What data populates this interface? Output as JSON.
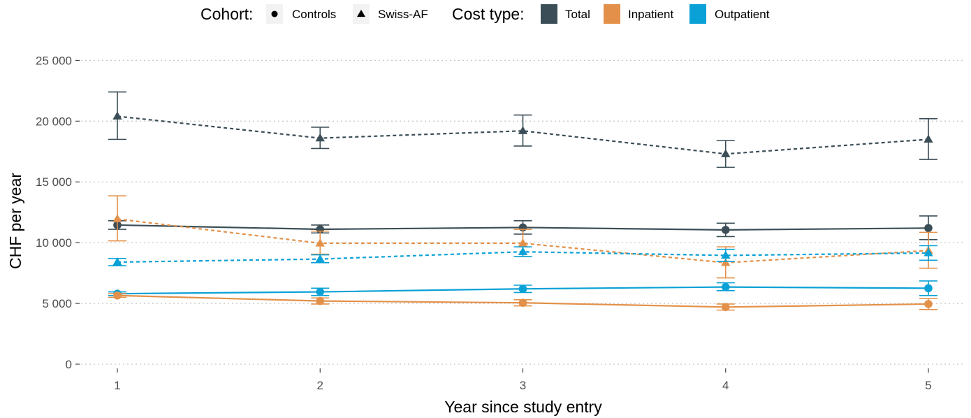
{
  "chart_data": {
    "type": "line",
    "xlabel": "Year since study entry",
    "ylabel": "CHF per year",
    "x": [
      1,
      2,
      3,
      4,
      5
    ],
    "x_ticks": [
      "1",
      "2",
      "3",
      "4",
      "5"
    ],
    "ylim": [
      0,
      25000
    ],
    "y_ticks": [
      0,
      5000,
      10000,
      15000,
      20000,
      25000
    ],
    "y_tick_labels": [
      "0",
      "5 000",
      "10 000",
      "15 000",
      "20 000",
      "25 000"
    ],
    "grid": "horizontal dotted",
    "legend_position": "top",
    "legend": {
      "cohort_title": "Cohort:",
      "cohort_items": [
        {
          "label": "Controls",
          "shape": "circle",
          "linestyle": "solid"
        },
        {
          "label": "Swiss-AF",
          "shape": "triangle",
          "linestyle": "dashed"
        }
      ],
      "cost_title": "Cost type:",
      "cost_items": [
        {
          "label": "Total",
          "color": "#3b4e57"
        },
        {
          "label": "Inpatient",
          "color": "#e3914a"
        },
        {
          "label": "Outpatient",
          "color": "#0aa1d6"
        }
      ]
    },
    "series": [
      {
        "cohort": "Swiss-AF",
        "cost_type": "Total",
        "values": [
          20400,
          18600,
          19200,
          17300,
          18500
        ],
        "lower": [
          18500,
          17750,
          17950,
          16200,
          16850
        ],
        "upper": [
          22400,
          19500,
          20500,
          18400,
          20200
        ]
      },
      {
        "cohort": "Controls",
        "cost_type": "Total",
        "values": [
          11450,
          11100,
          11250,
          11050,
          11200
        ],
        "lower": [
          11100,
          10800,
          10700,
          10500,
          10250
        ],
        "upper": [
          11800,
          11450,
          11800,
          11600,
          12200
        ]
      },
      {
        "cohort": "Swiss-AF",
        "cost_type": "Inpatient",
        "values": [
          11950,
          9950,
          9950,
          8350,
          9350
        ],
        "lower": [
          10150,
          9050,
          8850,
          7100,
          7900
        ],
        "upper": [
          13850,
          10950,
          11100,
          9650,
          10850
        ]
      },
      {
        "cohort": "Swiss-AF",
        "cost_type": "Outpatient",
        "values": [
          8400,
          8650,
          9250,
          8950,
          9150
        ],
        "lower": [
          8100,
          8350,
          8850,
          8450,
          8550
        ],
        "upper": [
          8700,
          9000,
          9650,
          9450,
          9750
        ]
      },
      {
        "cohort": "Controls",
        "cost_type": "Outpatient",
        "values": [
          5800,
          5950,
          6200,
          6350,
          6250
        ],
        "lower": [
          5650,
          5650,
          5900,
          6050,
          5650
        ],
        "upper": [
          5950,
          6250,
          6500,
          6700,
          6850
        ]
      },
      {
        "cohort": "Controls",
        "cost_type": "Inpatient",
        "values": [
          5650,
          5200,
          5050,
          4700,
          4950
        ],
        "lower": [
          5500,
          4950,
          4800,
          4450,
          4500
        ],
        "upper": [
          5800,
          5450,
          5300,
          4950,
          5400
        ]
      }
    ]
  }
}
